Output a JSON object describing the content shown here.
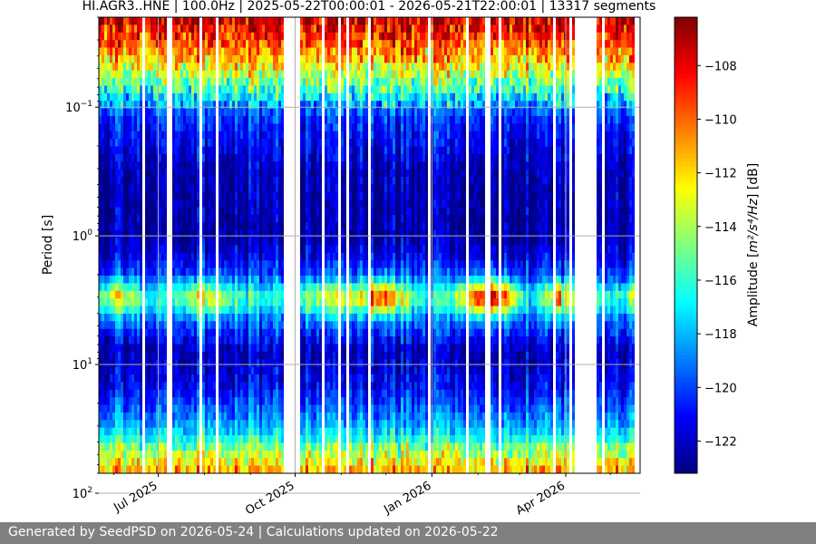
{
  "chart_data": {
    "type": "heatmap",
    "title": "HI.AGR3..HNE | 100.0Hz | 2025-05-22T00:00:01 - 2026-05-21T22:00:01 | 13317 segments",
    "ylabel": "Period [s]",
    "y_scale": "log",
    "y_inverted": true,
    "ylim": [
      0.02,
      70
    ],
    "y_ticks": [
      {
        "value": 0.1,
        "base": "10",
        "exp": "−1"
      },
      {
        "value": 1,
        "base": "10",
        "exp": "0"
      },
      {
        "value": 10,
        "base": "10",
        "exp": "1"
      },
      {
        "value": 100,
        "base": "10",
        "exp": "2"
      }
    ],
    "xlim": [
      "2025-05-22",
      "2026-05-21"
    ],
    "x_ticks": [
      {
        "date": "2025-07-01",
        "label": "Jul 2025"
      },
      {
        "date": "2025-10-01",
        "label": "Oct 2025"
      },
      {
        "date": "2026-01-01",
        "label": "Jan 2026"
      },
      {
        "date": "2026-04-01",
        "label": "Apr 2026"
      }
    ],
    "grid": true,
    "colormap": "jet",
    "colorbar": {
      "label_pre": "Amplitude [",
      "label_math": "m²/s⁴/Hz",
      "label_post": "] [dB]",
      "range": [
        -123.2,
        -106.2
      ],
      "ticks": [
        -108,
        -110,
        -112,
        -114,
        -116,
        -118,
        -120,
        -122
      ]
    },
    "data_gaps": [
      [
        "2025-09-22",
        "2025-10-03"
      ],
      [
        "2026-04-02",
        "2026-04-05"
      ],
      [
        "2026-04-06",
        "2026-04-21"
      ]
    ],
    "spectrum_profile": [
      {
        "period": 0.02,
        "db": -107.5
      },
      {
        "period": 0.03,
        "db": -109.5
      },
      {
        "period": 0.05,
        "db": -113
      },
      {
        "period": 0.08,
        "db": -117
      },
      {
        "period": 0.12,
        "db": -120
      },
      {
        "period": 0.3,
        "db": -122
      },
      {
        "period": 1.0,
        "db": -122.5
      },
      {
        "period": 2.0,
        "db": -120
      },
      {
        "period": 3.0,
        "db": -116
      },
      {
        "period": 4.5,
        "db": -119
      },
      {
        "period": 8.0,
        "db": -122
      },
      {
        "period": 15,
        "db": -121
      },
      {
        "period": 30,
        "db": -118
      },
      {
        "period": 50,
        "db": -114
      },
      {
        "period": 80,
        "db": -110
      },
      {
        "period": 130,
        "db": -108
      },
      {
        "period": 200,
        "db": -107
      }
    ],
    "microseism_peak_period_s": 3.0
  },
  "footer": {
    "text": "Generated by SeedPSD on 2026-05-24 | Calculations updated on 2026-05-22"
  },
  "colors": {
    "background": "#ffffff",
    "footer_background": "#808080",
    "footer_text": "#ffffff",
    "grid": "#b0b0b0"
  }
}
